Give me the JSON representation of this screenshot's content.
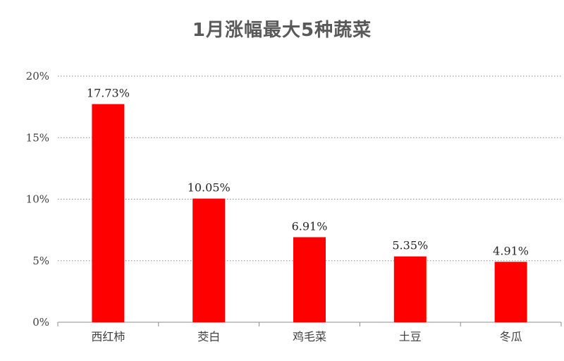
{
  "chart_data": {
    "type": "bar",
    "title": "1月涨幅最大5种蔬菜",
    "categories": [
      "西红柿",
      "茭白",
      "鸡毛菜",
      "土豆",
      "冬瓜"
    ],
    "values": [
      17.73,
      10.05,
      6.91,
      5.35,
      4.91
    ],
    "value_labels": [
      "17.73%",
      "10.05%",
      "6.91%",
      "5.35%",
      "4.91%"
    ],
    "ylim": [
      0,
      20
    ],
    "yticks": [
      0,
      5,
      10,
      15,
      20
    ],
    "ytick_labels": [
      "0%",
      "5%",
      "10%",
      "15%",
      "20%"
    ],
    "xlabel": "",
    "ylabel": "",
    "grid": true,
    "bar_color": "#ff0000"
  }
}
